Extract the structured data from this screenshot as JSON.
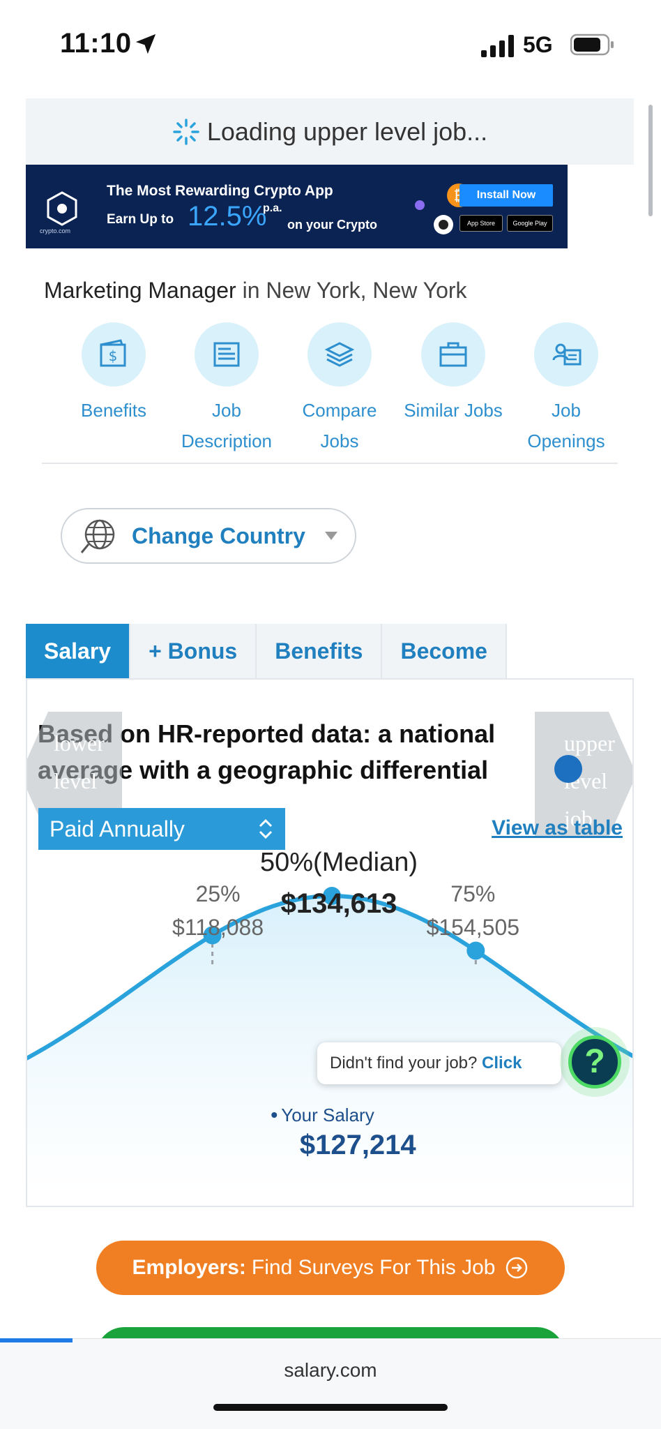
{
  "status_bar": {
    "time": "11:10",
    "network": "5G"
  },
  "loading": {
    "text": "Loading upper level job..."
  },
  "ad": {
    "brand": "crypto.com",
    "line1": "The Most Rewarding Crypto App",
    "line2_prefix": "Earn Up to",
    "rate": "12.5%",
    "rate_suffix": "p.a.",
    "line2_suffix": "on your Crypto",
    "install_label": "Install Now",
    "store1": "App Store",
    "store2": "Google Play"
  },
  "job": {
    "title": "Marketing Manager",
    "connector": "in",
    "location": "New York, New York"
  },
  "quick_nav": [
    {
      "label_1": "Benefits",
      "label_2": "",
      "icon": "wallet-dollar-icon"
    },
    {
      "label_1": "Job",
      "label_2": "Description",
      "icon": "document-icon"
    },
    {
      "label_1": "Compare",
      "label_2": "Jobs",
      "icon": "layers-icon"
    },
    {
      "label_1": "Similar Jobs",
      "label_2": "",
      "icon": "briefcase-icon"
    },
    {
      "label_1": "Job",
      "label_2": "Openings",
      "icon": "id-card-icon"
    }
  ],
  "country": {
    "label": "Change Country"
  },
  "tabs": [
    {
      "label": "Salary",
      "active": true
    },
    {
      "label": "+ Bonus",
      "active": false
    },
    {
      "label": "Benefits",
      "active": false
    },
    {
      "label": "Become",
      "active": false
    }
  ],
  "panel": {
    "heading": "Based on HR-reported data: a national average with a geographic differential",
    "prev_arrow": "lower level job",
    "next_arrow": "upper level job",
    "pay_period": "Paid Annually",
    "view_table": "View as table"
  },
  "chart_data": {
    "type": "area",
    "title": "",
    "percentiles": [
      {
        "label": "25%",
        "value": 118088,
        "display": "$118,088"
      },
      {
        "label": "50%(Median)",
        "value": 134613,
        "display": "$134,613"
      },
      {
        "label": "75%",
        "value": 154505,
        "display": "$154,505"
      }
    ],
    "your_salary": {
      "label": "Your Salary",
      "value": 127214,
      "display": "$127,214"
    },
    "colors": {
      "curve": "#2aa3dc",
      "fill_top": "#d8f0fb"
    }
  },
  "help": {
    "text": "Didn't find your job?",
    "link": "Click",
    "button": "?"
  },
  "employers": {
    "bold": "Employers:",
    "text": "Find Surveys For This Job"
  },
  "browser": {
    "url": "salary.com"
  }
}
